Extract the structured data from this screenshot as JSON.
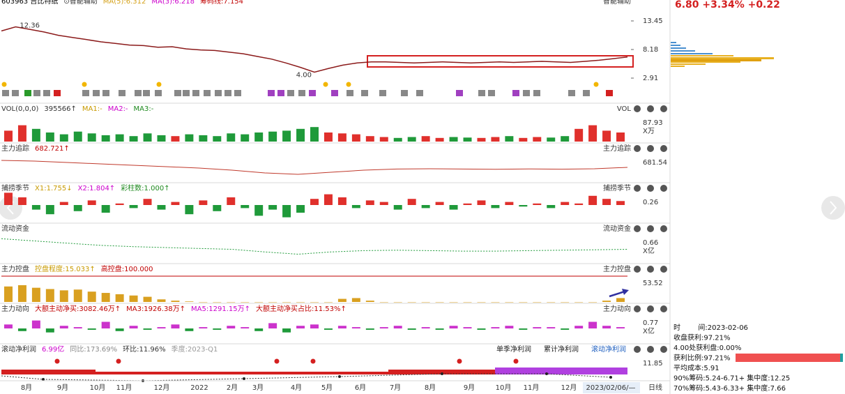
{
  "quote": "6.80 +3.34% +0.22",
  "main": {
    "type": "line",
    "color": "#8b1a1a",
    "ma_color": "#e08030",
    "items": [
      {
        "text": "603963 吉比特纸",
        "color": "#000000"
      },
      {
        "text": "⊙智能辅助",
        "color": "#333333"
      },
      {
        "text": "MA(5):6.312",
        "color": "#d4a017"
      },
      {
        "text": "MA(3):6.218",
        "color": "#cc00cc"
      },
      {
        "text": "筹码线:7.154",
        "color": "#c00000"
      }
    ],
    "right_label": "智能辅助",
    "ylim": [
      2.91,
      13.45
    ],
    "yticks": [
      13.45,
      8.18,
      2.91
    ],
    "high_label": "12.36",
    "low_label": "4.00",
    "values": [
      11.6,
      12.36,
      11.9,
      11.4,
      10.8,
      10.4,
      10.0,
      9.6,
      9.3,
      9.0,
      8.9,
      8.6,
      8.7,
      8.3,
      8.1,
      8.0,
      7.7,
      7.4,
      6.9,
      6.4,
      5.7,
      4.9,
      4.0,
      4.7,
      5.3,
      5.7,
      5.9,
      5.9,
      5.8,
      5.7,
      5.8,
      5.9,
      5.8,
      5.7,
      5.8,
      5.9,
      5.8,
      5.9,
      6.0,
      5.9,
      5.8,
      6.0,
      6.2,
      6.5,
      6.8
    ]
  },
  "vol": {
    "type": "bar",
    "colors": [
      "#e0302c",
      "#1f9a3a"
    ],
    "items": [
      {
        "text": "VOL(0,0,0)",
        "color": "#333333"
      },
      {
        "text": "395566↑",
        "color": "#333333"
      },
      {
        "text": "MA1:-",
        "color": "#c89a00"
      },
      {
        "text": "MA2:-",
        "color": "#cc00cc"
      },
      {
        "text": "MA3:-",
        "color": "#1f8a1f"
      }
    ],
    "right_label": "VOL",
    "scale": [
      "87.93",
      "X万"
    ],
    "ylim": [
      0,
      150
    ],
    "values": [
      60,
      90,
      70,
      50,
      40,
      55,
      45,
      35,
      40,
      30,
      45,
      35,
      30,
      40,
      35,
      30,
      45,
      40,
      50,
      55,
      60,
      70,
      80,
      50,
      45,
      40,
      30,
      25,
      20,
      25,
      30,
      20,
      25,
      22,
      20,
      25,
      30,
      20,
      25,
      22,
      30,
      70,
      90,
      60,
      50
    ]
  },
  "track": {
    "type": "line",
    "color": "#c0392b",
    "items": [
      {
        "text": "主力追踪",
        "color": "#333333"
      },
      {
        "text": "682.721↑",
        "color": "#c00000"
      }
    ],
    "right_label": "主力追踪",
    "scale": [
      "681.54"
    ],
    "ylim": [
      600,
      780
    ],
    "values": [
      740,
      735,
      725,
      715,
      705,
      695,
      685,
      670,
      650,
      640,
      655,
      670,
      678,
      680,
      678,
      676,
      679,
      677,
      680,
      690
    ]
  },
  "season": {
    "type": "bar",
    "colors": [
      "#e0302c",
      "#1f9a3a"
    ],
    "items": [
      {
        "text": "捕捞季节",
        "color": "#333333"
      },
      {
        "text": "X1:1.755↓",
        "color": "#c89a00"
      },
      {
        "text": "X2:1.804↑",
        "color": "#cc00cc"
      },
      {
        "text": "彩柱数:1.000↑",
        "color": "#1f8a1f"
      }
    ],
    "right_label": "捕捞季节",
    "scale": [
      "0.26"
    ],
    "ylim": [
      -1,
      1
    ],
    "values": [
      0.8,
      0.5,
      -0.3,
      -0.6,
      0.2,
      -0.4,
      0.3,
      -0.5,
      0.1,
      -0.2,
      0.4,
      -0.3,
      0.2,
      -0.6,
      0.3,
      -0.4,
      0.5,
      -0.2,
      -0.7,
      -0.3,
      -0.8,
      -0.5,
      0.4,
      0.7,
      0.5,
      -0.2,
      0.3,
      0.2,
      -0.3,
      0.4,
      -0.2,
      0.2,
      -0.3,
      0.1,
      0.3,
      -0.2,
      0.2,
      -0.1,
      0.1,
      -0.2,
      0.2,
      0.1,
      0.6,
      0.4,
      0.26
    ]
  },
  "flow": {
    "type": "line",
    "color": "#1f9a3a",
    "dashed": true,
    "items": [
      {
        "text": "流动资金",
        "color": "#333333"
      }
    ],
    "right_label": "流动资金",
    "scale": [
      "0.66",
      "X亿"
    ],
    "ylim": [
      0.4,
      1.0
    ],
    "values": [
      0.9,
      0.85,
      0.8,
      0.75,
      0.72,
      0.7,
      0.68,
      0.66,
      0.6,
      0.55,
      0.6,
      0.63,
      0.64,
      0.63,
      0.62,
      0.62,
      0.63,
      0.64,
      0.65,
      0.66
    ]
  },
  "control": {
    "type": "bar",
    "colors": [
      "#d9a020",
      "#d9a020"
    ],
    "items": [
      {
        "text": "主力控盘",
        "color": "#333333"
      },
      {
        "text": "控盘程度:15.033↑",
        "color": "#c89a00"
      },
      {
        "text": "高控盘:100.000",
        "color": "#c00000"
      }
    ],
    "right_label": "主力控盘",
    "scale": [
      "53.52"
    ],
    "ylim": [
      0,
      100
    ],
    "values": [
      60,
      65,
      55,
      50,
      45,
      48,
      40,
      35,
      30,
      25,
      20,
      10,
      5,
      2,
      0,
      0,
      0,
      0,
      0,
      0,
      0,
      0,
      0,
      0,
      12,
      15,
      5,
      0,
      0,
      0,
      0,
      0,
      0,
      0,
      0,
      0,
      0,
      0,
      0,
      0,
      0,
      0,
      0,
      5,
      15
    ]
  },
  "direction": {
    "type": "bar",
    "colors": [
      "#cc33cc",
      "#1f9a3a"
    ],
    "items": [
      {
        "text": "主力动向",
        "color": "#333333"
      },
      {
        "text": "大额主动净买:3082.46万↑",
        "color": "#c00000"
      },
      {
        "text": "MA3:1926.38万↑",
        "color": "#c00000"
      },
      {
        "text": "MA5:1291.15万↑",
        "color": "#cc00cc"
      },
      {
        "text": "大额主动净买占比:11.53%↑",
        "color": "#c00000"
      }
    ],
    "right_label": "主力动向",
    "scale": [
      "0.77",
      "X亿"
    ],
    "ylim": [
      -1,
      1
    ],
    "values": [
      0.3,
      -0.2,
      0.6,
      -0.3,
      0.2,
      0.1,
      -0.1,
      0.5,
      -0.2,
      0.2,
      -0.1,
      0.1,
      0.3,
      -0.2,
      0.1,
      -0.1,
      0.2,
      0.1,
      -0.2,
      0.4,
      -0.3,
      0.2,
      0.3,
      -0.1,
      0.2,
      0.1,
      -0.1,
      0.1,
      0.2,
      -0.1,
      0.1,
      -0.1,
      0.2,
      0.1,
      -0.1,
      0.1,
      0.2,
      -0.1,
      0.1,
      0.1,
      -0.1,
      0.2,
      0.5,
      0.2,
      0.1
    ]
  },
  "profit": {
    "items": [
      {
        "text": "滚动净利润",
        "color": "#333333"
      },
      {
        "text": "6.99亿",
        "color": "#cc00cc"
      },
      {
        "text": "同比:173.69%",
        "color": "#888888"
      },
      {
        "text": "环比:11.96%",
        "color": "#333333"
      },
      {
        "text": "季度:2023-Q1",
        "color": "#999999"
      }
    ],
    "tabs": [
      "单季净利润",
      "累计净利润",
      "滚动净利润"
    ],
    "scale": [
      "11.85"
    ]
  },
  "x_axis": [
    "8月",
    "9月",
    "10月",
    "11月",
    "12月",
    "2022",
    "2月",
    "3月",
    "4月",
    "5月",
    "6月",
    "7月",
    "8月",
    "9月",
    "10月",
    "11月",
    "12月"
  ],
  "cursor_date": "2023/02/06/—",
  "period": "日线",
  "info": [
    "时        间:2023-02-06",
    "收盘获利:97.21%",
    "4.00处获利盘:0.00%",
    "获利比例:97.21%",
    "平均成本:5.91",
    "90%筹码:5.24-6.71+ 集中度:12.25",
    "70%筹码:5.43-6.33+ 集中度:7.66"
  ]
}
